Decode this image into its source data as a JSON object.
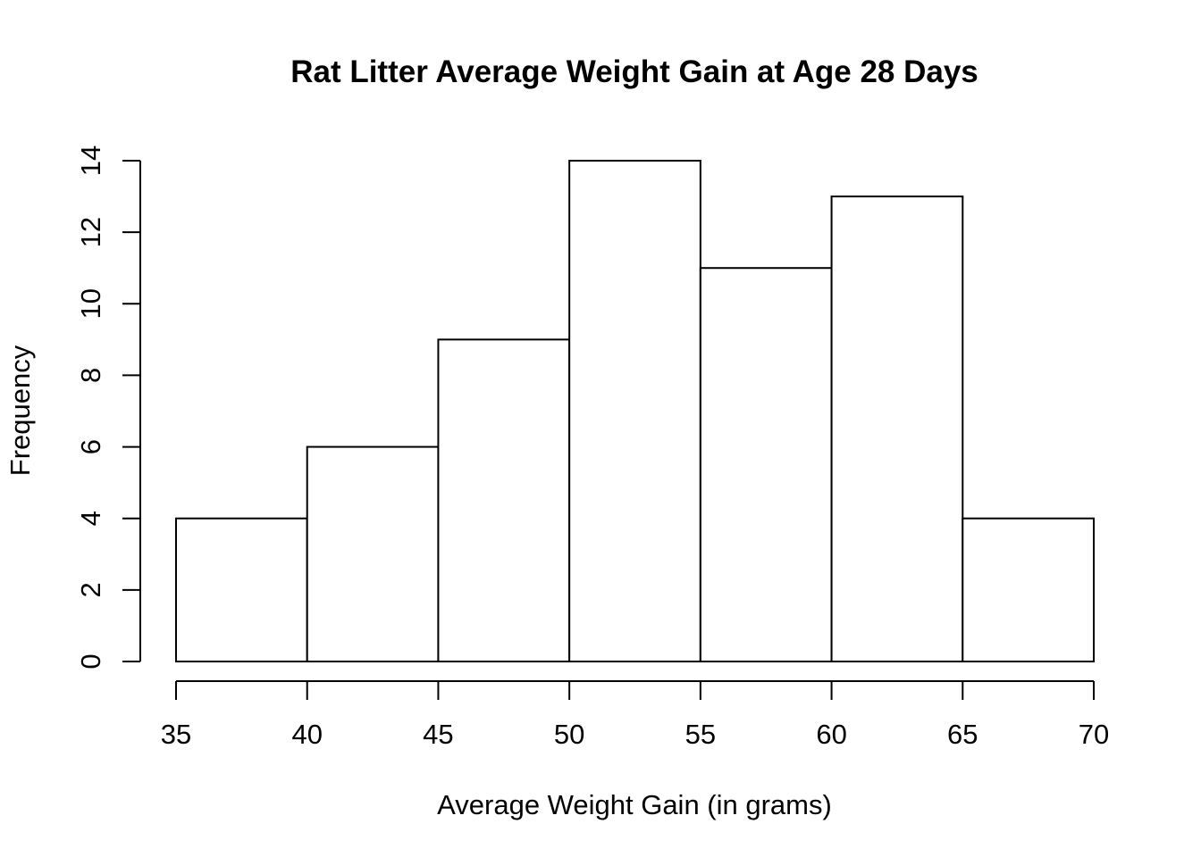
{
  "chart_data": {
    "type": "bar",
    "subtype": "histogram",
    "title": "Rat Litter Average Weight Gain at Age 28 Days",
    "xlabel": "Average Weight Gain (in grams)",
    "ylabel": "Frequency",
    "bin_edges": [
      35,
      40,
      45,
      50,
      55,
      60,
      65,
      70
    ],
    "categories": [
      "35-40",
      "40-45",
      "45-50",
      "50-55",
      "55-60",
      "60-65",
      "65-70"
    ],
    "values": [
      4,
      6,
      9,
      14,
      11,
      13,
      4
    ],
    "x_ticks": [
      35,
      40,
      45,
      50,
      55,
      60,
      65,
      70
    ],
    "y_ticks": [
      0,
      2,
      4,
      6,
      8,
      10,
      12,
      14
    ],
    "xlim": [
      35,
      70
    ],
    "ylim": [
      0,
      14
    ],
    "grid": "off",
    "legend": "none",
    "bar_fill": "#ffffff",
    "bar_stroke": "#000000",
    "axis_color": "#000000",
    "text_color": "#000000",
    "background": "#ffffff"
  }
}
